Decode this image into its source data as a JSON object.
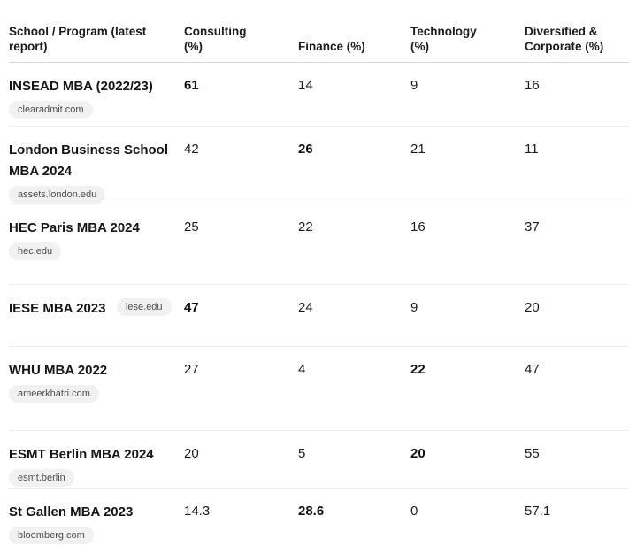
{
  "table": {
    "columns": [
      {
        "label": "School / Program (latest report)"
      },
      {
        "label": "Consulting (%)"
      },
      {
        "label": "Finance (%)"
      },
      {
        "label": "Technology (%)"
      },
      {
        "label": "Diversified & Corporate (%)"
      }
    ],
    "rows": [
      {
        "school": "INSEAD MBA (2022/23)",
        "source": "clearadmit.com",
        "badge_inline": false,
        "values": [
          {
            "text": "61",
            "bold": true
          },
          {
            "text": "14",
            "bold": false
          },
          {
            "text": "9",
            "bold": false
          },
          {
            "text": "16",
            "bold": false
          }
        ]
      },
      {
        "school": "London Business School MBA 2024",
        "source": "assets.london.edu",
        "badge_inline": false,
        "values": [
          {
            "text": "42",
            "bold": false
          },
          {
            "text": "26",
            "bold": true
          },
          {
            "text": "21",
            "bold": false
          },
          {
            "text": "11",
            "bold": false
          }
        ]
      },
      {
        "school": "HEC Paris MBA 2024",
        "source": "hec.edu",
        "badge_inline": false,
        "values": [
          {
            "text": "25",
            "bold": false
          },
          {
            "text": "22",
            "bold": false
          },
          {
            "text": "16",
            "bold": false
          },
          {
            "text": "37",
            "bold": false
          }
        ]
      },
      {
        "school": "IESE MBA 2023",
        "source": "iese.edu",
        "badge_inline": true,
        "values": [
          {
            "text": "47",
            "bold": true
          },
          {
            "text": "24",
            "bold": false
          },
          {
            "text": "9",
            "bold": false
          },
          {
            "text": "20",
            "bold": false
          }
        ]
      },
      {
        "school": "WHU MBA 2022",
        "source": "ameerkhatri.com",
        "badge_inline": false,
        "values": [
          {
            "text": "27",
            "bold": false
          },
          {
            "text": "4",
            "bold": false
          },
          {
            "text": "22",
            "bold": true
          },
          {
            "text": "47",
            "bold": false
          }
        ]
      },
      {
        "school": "ESMT Berlin MBA 2024",
        "source": "esmt.berlin",
        "badge_inline": false,
        "values": [
          {
            "text": "20",
            "bold": false
          },
          {
            "text": "5",
            "bold": false
          },
          {
            "text": "20",
            "bold": true
          },
          {
            "text": "55",
            "bold": false
          }
        ]
      },
      {
        "school": "St Gallen MBA 2023",
        "source": "bloomberg.com",
        "badge_inline": false,
        "values": [
          {
            "text": "14.3",
            "bold": false
          },
          {
            "text": "28.6",
            "bold": true
          },
          {
            "text": "0",
            "bold": false
          },
          {
            "text": "57.1",
            "bold": false
          }
        ]
      }
    ]
  },
  "colors": {
    "text": "#1c1c1c",
    "header_divider": "#d4d4d4",
    "row_divider": "#ececec",
    "badge_background": "#f1f1f1",
    "badge_text": "#4e4e4e",
    "background": "#ffffff"
  }
}
